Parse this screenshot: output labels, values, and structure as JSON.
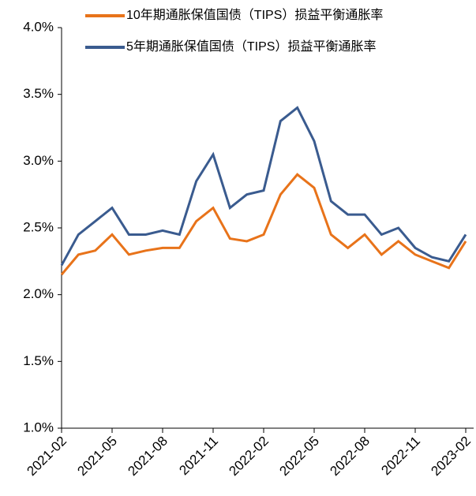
{
  "chart_data": {
    "type": "line",
    "x": [
      "2021-02",
      "2021-03",
      "2021-04",
      "2021-05",
      "2021-06",
      "2021-07",
      "2021-08",
      "2021-09",
      "2021-10",
      "2021-11",
      "2021-12",
      "2022-01",
      "2022-02",
      "2022-03",
      "2022-04",
      "2022-05",
      "2022-06",
      "2022-07",
      "2022-08",
      "2022-09",
      "2022-10",
      "2022-11",
      "2022-12",
      "2023-01",
      "2023-02"
    ],
    "series": [
      {
        "name": "10年期通胀保值国债（TIPS）损益平衡通胀率",
        "color": "#e8731a",
        "values": [
          2.15,
          2.3,
          2.33,
          2.45,
          2.3,
          2.33,
          2.35,
          2.35,
          2.55,
          2.65,
          2.42,
          2.4,
          2.45,
          2.75,
          2.9,
          2.8,
          2.45,
          2.35,
          2.45,
          2.3,
          2.4,
          2.3,
          2.25,
          2.2,
          2.4
        ]
      },
      {
        "name": "5年期通胀保值国债（TIPS）损益平衡通胀率",
        "color": "#3a5b8f",
        "values": [
          2.22,
          2.45,
          2.55,
          2.65,
          2.45,
          2.45,
          2.48,
          2.45,
          2.85,
          3.05,
          2.65,
          2.75,
          2.78,
          3.3,
          3.4,
          3.15,
          2.7,
          2.6,
          2.6,
          2.45,
          2.5,
          2.35,
          2.28,
          2.25,
          2.45
        ]
      }
    ],
    "xlim": [
      "2021-02",
      "2023-02"
    ],
    "xticks": [
      "2021-02",
      "2021-05",
      "2021-08",
      "2021-11",
      "2022-02",
      "2022-05",
      "2022-08",
      "2022-11",
      "2023-02"
    ],
    "ylim": [
      1,
      4
    ],
    "yticks": [
      {
        "value": 1,
        "label": "1.0%"
      },
      {
        "value": 1.5,
        "label": "1.5%"
      },
      {
        "value": 2,
        "label": "2.0%"
      },
      {
        "value": 2.5,
        "label": "2.5%"
      },
      {
        "value": 3,
        "label": "3.0%"
      },
      {
        "value": 3.5,
        "label": "3.5%"
      },
      {
        "value": 4,
        "label": "4.0%"
      }
    ],
    "legend": "top-right"
  }
}
